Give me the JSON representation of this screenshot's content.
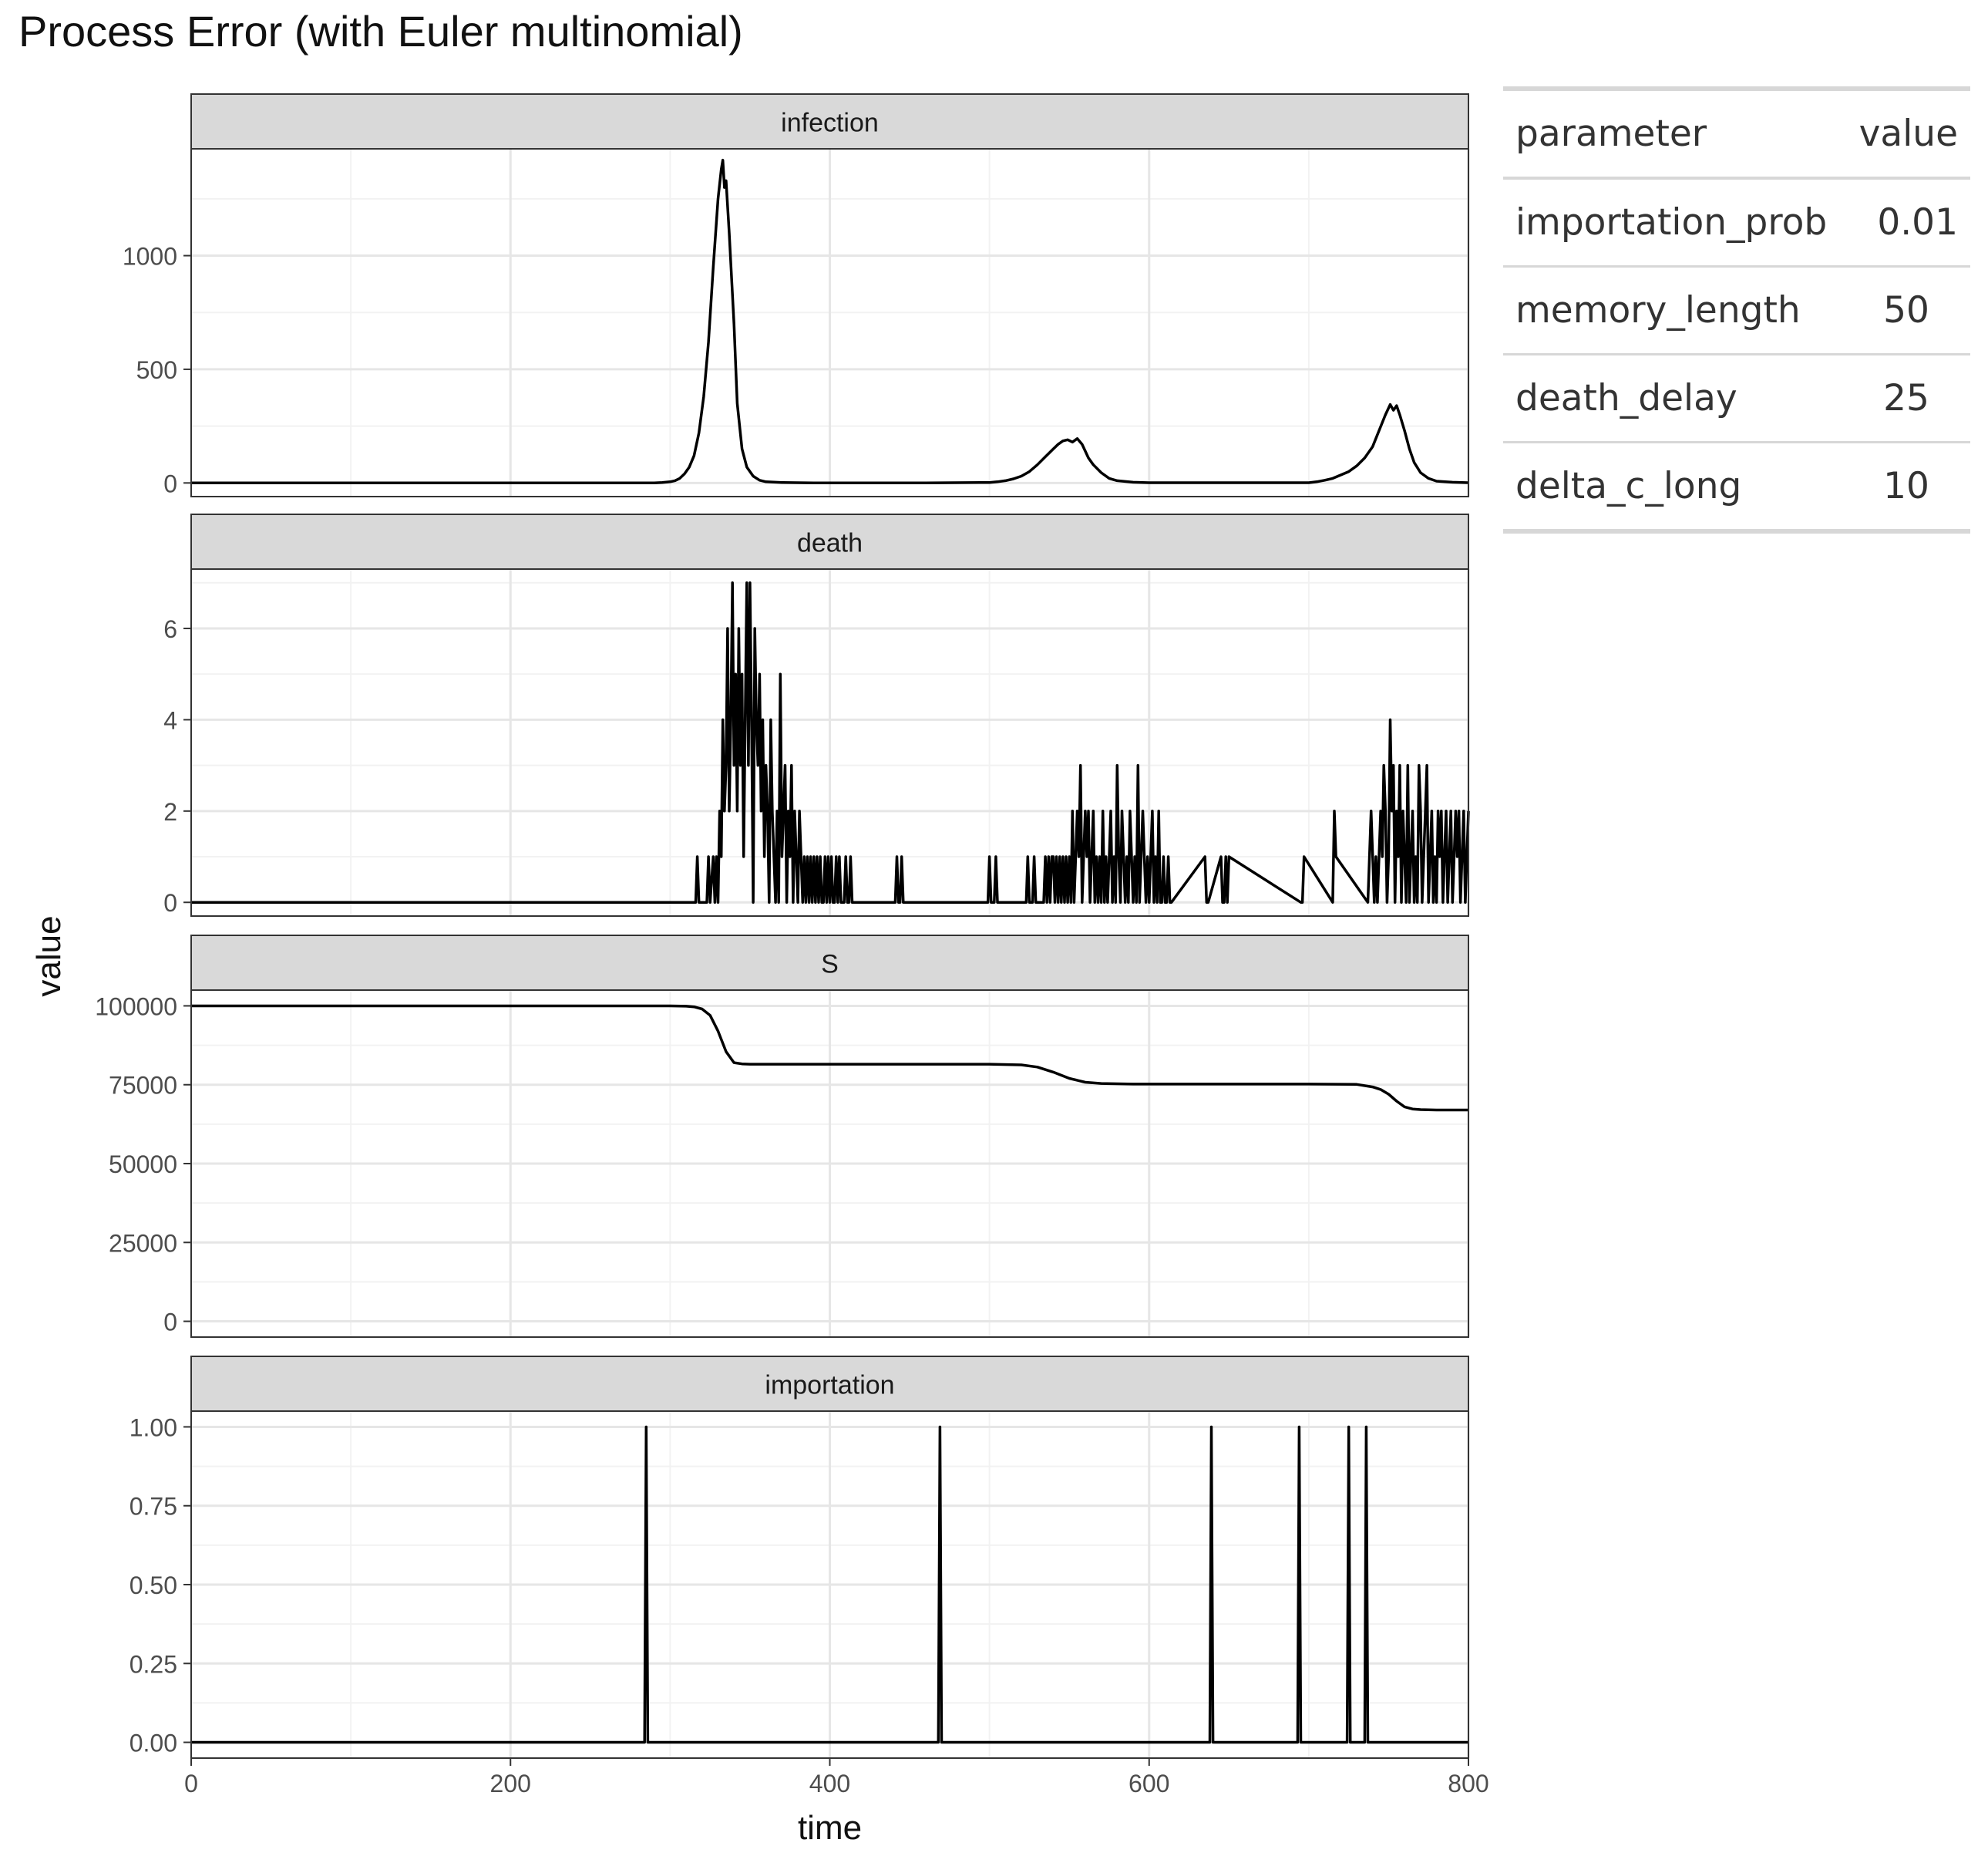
{
  "title": "Process Error (with Euler multinomial)",
  "chart_data": {
    "type": "line",
    "xlabel": "time",
    "ylabel": "value",
    "xlim": [
      0,
      800
    ],
    "x_ticks": [
      "0",
      "200",
      "400",
      "600",
      "800"
    ],
    "line_color": "#000000",
    "panels": [
      {
        "name": "infection",
        "ylim": [
          -60,
          1470
        ],
        "y_ticks": [
          "0",
          "500",
          "1000"
        ],
        "y_tick_values": [
          0,
          500,
          1000
        ],
        "x": [
          0,
          290,
          295,
          300,
          303,
          306,
          309,
          312,
          315,
          318,
          321,
          324,
          327,
          330,
          332,
          333,
          334,
          335,
          337,
          340,
          342,
          345,
          348,
          352,
          356,
          360,
          370,
          380,
          390,
          400,
          460,
          500,
          505,
          510,
          515,
          520,
          525,
          530,
          535,
          540,
          543,
          546,
          549,
          552,
          555,
          558,
          560,
          562,
          565,
          570,
          575,
          580,
          590,
          600,
          700,
          705,
          710,
          715,
          720,
          725,
          730,
          735,
          740,
          744,
          748,
          751,
          753,
          755,
          757,
          760,
          763,
          766,
          770,
          775,
          780,
          790,
          800
        ],
        "y": [
          0,
          0,
          2,
          5,
          10,
          20,
          40,
          70,
          120,
          220,
          380,
          620,
          950,
          1250,
          1380,
          1420,
          1300,
          1330,
          1100,
          700,
          350,
          150,
          70,
          30,
          12,
          5,
          2,
          1,
          0,
          0,
          0,
          2,
          5,
          10,
          18,
          30,
          50,
          80,
          115,
          150,
          170,
          185,
          190,
          180,
          195,
          170,
          140,
          110,
          80,
          45,
          20,
          10,
          3,
          1,
          1,
          5,
          12,
          20,
          35,
          50,
          75,
          110,
          160,
          230,
          300,
          345,
          320,
          340,
          300,
          230,
          150,
          90,
          45,
          20,
          8,
          3,
          1
        ]
      },
      {
        "name": "death",
        "ylim": [
          -0.3,
          7.3
        ],
        "y_ticks": [
          "0",
          "2",
          "4",
          "6"
        ],
        "y_tick_values": [
          0,
          2,
          4,
          6
        ],
        "x": [
          0,
          316,
          317,
          318,
          323,
          324,
          325,
          327,
          328,
          329,
          330,
          331,
          332,
          333,
          334,
          335,
          336,
          337,
          338,
          339,
          340,
          341,
          342,
          343,
          344,
          345,
          346,
          347,
          348,
          349,
          350,
          351,
          352,
          353,
          354,
          355,
          356,
          357,
          358,
          359,
          360,
          361,
          362,
          363,
          364,
          365,
          366,
          367,
          368,
          369,
          370,
          371,
          372,
          373,
          374,
          375,
          376,
          377,
          378,
          379,
          380,
          381,
          382,
          383,
          384,
          385,
          386,
          387,
          388,
          389,
          390,
          391,
          392,
          393,
          394,
          395,
          396,
          397,
          398,
          399,
          400,
          401,
          402,
          403,
          404,
          405,
          406,
          407,
          408,
          409,
          410,
          411,
          412,
          413,
          414,
          441,
          442,
          443,
          444,
          445,
          446,
          499,
          500,
          501,
          503,
          504,
          505,
          523,
          524,
          525,
          527,
          528,
          529,
          534,
          535,
          536,
          537,
          538,
          539,
          540,
          541,
          542,
          543,
          544,
          545,
          546,
          547,
          548,
          549,
          550,
          551,
          552,
          553,
          554,
          555,
          556,
          557,
          558,
          559,
          560,
          561,
          562,
          563,
          564,
          565,
          566,
          567,
          568,
          569,
          570,
          571,
          572,
          573,
          574,
          575,
          576,
          577,
          578,
          579,
          580,
          581,
          582,
          583,
          584,
          585,
          586,
          587,
          588,
          589,
          590,
          591,
          592,
          593,
          594,
          595,
          596,
          597,
          598,
          599,
          600,
          601,
          602,
          603,
          604,
          605,
          606,
          607,
          608,
          609,
          610,
          611,
          612,
          613,
          614,
          635,
          636,
          637,
          645,
          646,
          647,
          648,
          649,
          650,
          695,
          696,
          697,
          715,
          716,
          717,
          737,
          738,
          739,
          741,
          742,
          743,
          745,
          746,
          747,
          748,
          749,
          750,
          751,
          752,
          753,
          754,
          755,
          756,
          757,
          758,
          759,
          760,
          761,
          762,
          763,
          764,
          765,
          766,
          767,
          768,
          769,
          770,
          771,
          772,
          773,
          774,
          775,
          776,
          777,
          778,
          779,
          780,
          781,
          782,
          783,
          784,
          785,
          786,
          787,
          788,
          789,
          790,
          791,
          792,
          793,
          794,
          795,
          796,
          797,
          798,
          799,
          800
        ],
        "y": [
          0,
          0,
          1,
          0,
          0,
          1,
          0,
          1,
          0,
          1,
          0,
          2,
          1,
          4,
          2,
          3,
          6,
          2,
          4,
          7,
          3,
          5,
          2,
          6,
          3,
          5,
          1,
          4,
          7,
          3,
          7,
          4,
          0,
          6,
          4,
          3,
          5,
          2,
          4,
          1,
          3,
          2,
          0,
          4,
          2,
          1,
          0,
          2,
          0,
          5,
          1,
          2,
          3,
          0,
          2,
          1,
          3,
          0,
          2,
          1,
          0,
          2,
          1,
          0,
          1,
          0,
          1,
          0,
          1,
          0,
          1,
          0,
          1,
          0,
          1,
          0,
          0,
          1,
          0,
          1,
          0,
          1,
          0,
          0,
          1,
          0,
          1,
          0,
          0,
          0,
          1,
          0,
          0,
          1,
          0,
          0,
          1,
          0,
          0,
          1,
          0,
          0,
          1,
          0,
          0,
          1,
          0,
          0,
          1,
          0,
          0,
          1,
          0,
          0,
          1,
          0,
          1,
          0,
          1,
          1,
          0,
          1,
          0,
          1,
          0,
          1,
          0,
          1,
          0,
          1,
          0,
          2,
          0,
          1,
          2,
          1,
          3,
          0,
          1,
          2,
          1,
          2,
          0,
          1,
          2,
          0,
          1,
          0,
          1,
          0,
          2,
          0,
          1,
          0,
          1,
          2,
          0,
          1,
          0,
          3,
          1,
          0,
          2,
          1,
          0,
          1,
          0,
          2,
          1,
          0,
          1,
          0,
          3,
          0,
          1,
          2,
          1,
          0,
          1,
          0,
          1,
          2,
          0,
          1,
          0,
          2,
          0,
          0,
          1,
          0,
          0,
          1,
          0,
          0,
          1,
          0,
          0,
          1,
          0,
          0,
          1,
          0,
          1,
          0,
          0,
          1,
          0,
          2,
          1,
          0,
          1,
          2,
          0,
          1,
          0,
          2,
          1,
          3,
          2,
          0,
          1,
          4,
          2,
          3,
          0,
          2,
          1,
          3,
          0,
          2,
          1,
          0,
          3,
          0,
          1,
          2,
          0,
          1,
          0,
          3,
          2,
          0,
          1,
          2,
          3,
          0,
          1,
          2,
          0,
          1,
          0,
          2,
          1,
          2,
          0,
          1,
          2,
          0,
          1,
          2,
          0,
          1,
          2,
          1,
          2,
          0,
          1,
          2,
          0,
          1,
          2
        ],
        "y_values_note": ""
      },
      {
        "name": "S",
        "ylim": [
          -5000,
          105000
        ],
        "y_ticks": [
          "0",
          "25000",
          "50000",
          "75000",
          "100000"
        ],
        "y_tick_values": [
          0,
          25000,
          50000,
          75000,
          100000
        ],
        "x": [
          0,
          300,
          310,
          315,
          320,
          325,
          330,
          335,
          340,
          345,
          350,
          360,
          500,
          520,
          530,
          540,
          550,
          560,
          570,
          580,
          590,
          600,
          700,
          730,
          740,
          745,
          750,
          755,
          760,
          765,
          770,
          780,
          800
        ],
        "y": [
          100000,
          100000,
          99900,
          99700,
          99000,
          97000,
          92000,
          85500,
          82000,
          81600,
          81500,
          81500,
          81500,
          81300,
          80600,
          79000,
          77000,
          75800,
          75400,
          75300,
          75200,
          75200,
          75200,
          75100,
          74300,
          73500,
          72000,
          69800,
          68000,
          67300,
          67100,
          67000,
          67000
        ]
      },
      {
        "name": "importation",
        "ylim": [
          -0.05,
          1.05
        ],
        "y_ticks": [
          "0.00",
          "0.25",
          "0.50",
          "0.75",
          "1.00"
        ],
        "y_tick_values": [
          0,
          0.25,
          0.5,
          0.75,
          1
        ],
        "x": [
          0,
          284,
          285,
          286,
          468,
          469,
          470,
          638,
          639,
          640,
          693,
          694,
          695,
          724,
          725,
          726,
          735,
          736,
          737,
          800
        ],
        "y": [
          0,
          0,
          1,
          0,
          0,
          1,
          0,
          0,
          1,
          0,
          0,
          1,
          0,
          0,
          1,
          0,
          0,
          1,
          0,
          0
        ]
      }
    ]
  },
  "table": {
    "headers": [
      "parameter",
      "value"
    ],
    "rows": [
      [
        "importation_prob",
        "0.01"
      ],
      [
        "memory_length",
        "50"
      ],
      [
        "death_delay",
        "25"
      ],
      [
        "delta_c_long",
        "10"
      ]
    ]
  }
}
